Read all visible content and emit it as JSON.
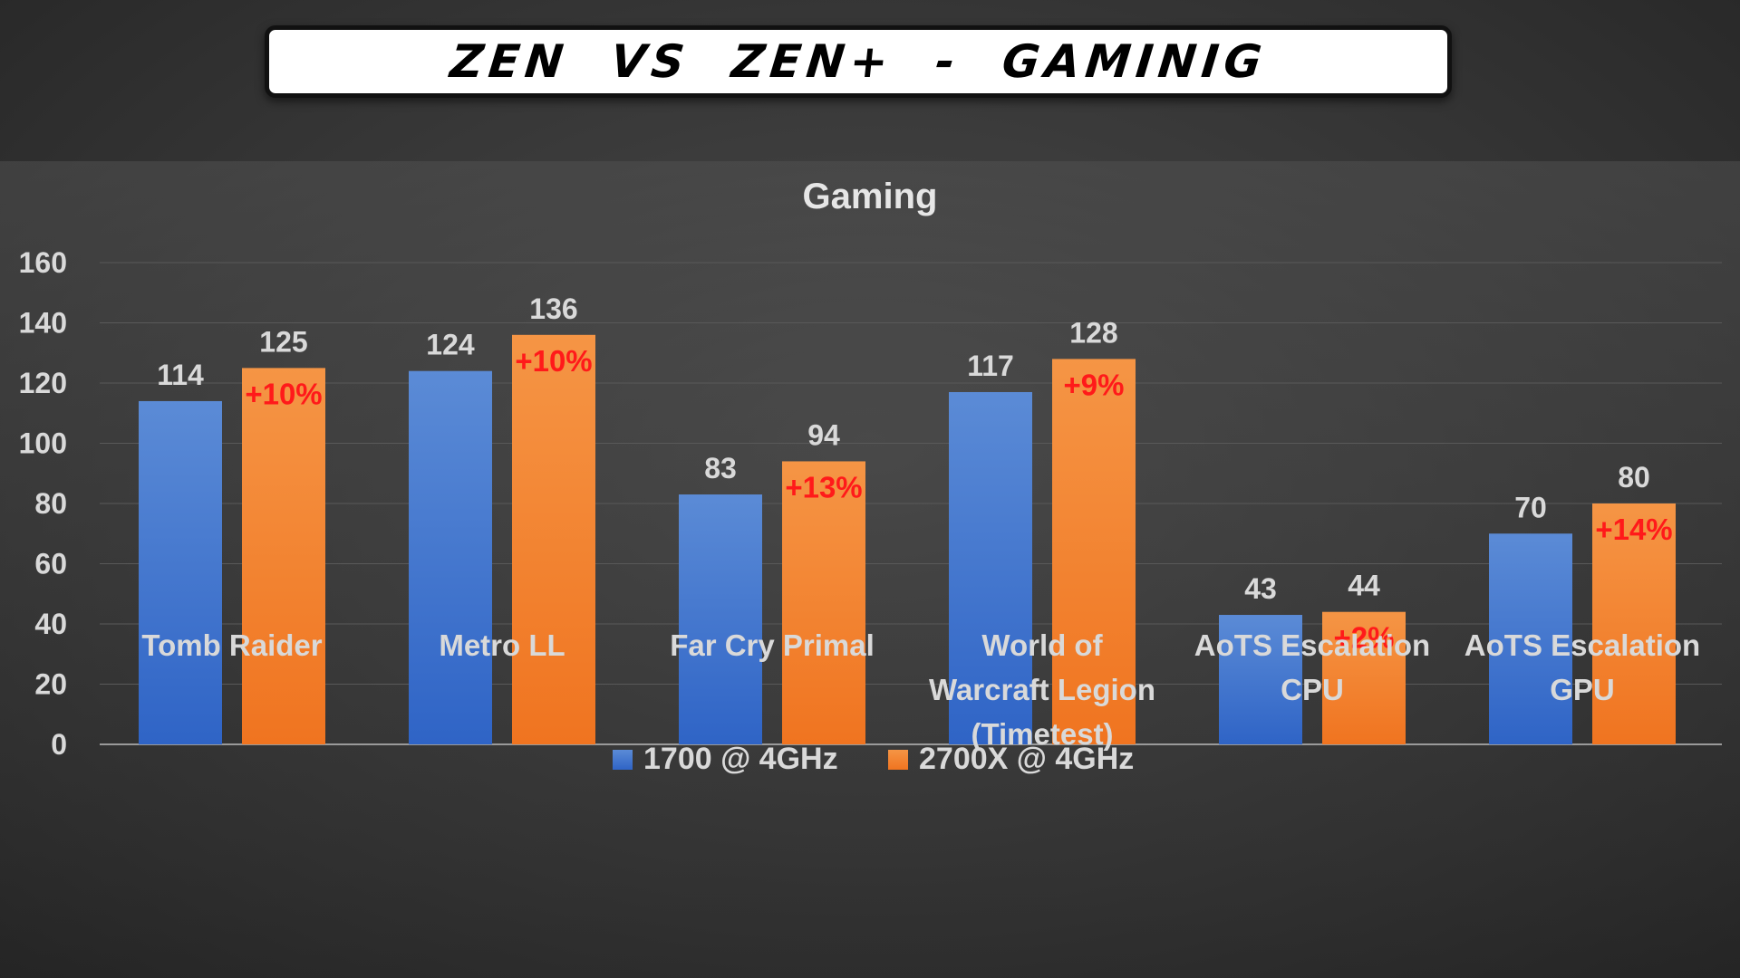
{
  "banner": {
    "title": "ZEN  VS  ZEN+  -  GAMINIG"
  },
  "colors": {
    "series_1700": "#4472c4",
    "series_2700x": "#ed7d31",
    "percent_label": "#ff1a1a",
    "gridline": "#595959",
    "text": "#d9d9d9"
  },
  "chart_data": {
    "type": "bar",
    "title": "Gaming",
    "xlabel": "",
    "ylabel": "",
    "ylim": [
      0,
      160
    ],
    "yticks": [
      0,
      20,
      40,
      60,
      80,
      100,
      120,
      140,
      160
    ],
    "grid": true,
    "legend_position": "bottom",
    "categories": [
      [
        "Tomb Raider"
      ],
      [
        "Metro LL"
      ],
      [
        "Far Cry Primal"
      ],
      [
        "World of",
        "Warcraft Legion",
        "(Timetest)"
      ],
      [
        "AoTS Escalation",
        "CPU"
      ],
      [
        "AoTS Escalation",
        "GPU"
      ]
    ],
    "series": [
      {
        "name": "1700 @ 4GHz",
        "values": [
          114,
          124,
          83,
          117,
          43,
          70
        ]
      },
      {
        "name": "2700X @ 4GHz",
        "values": [
          125,
          136,
          94,
          128,
          44,
          80
        ],
        "annotations": [
          "+10%",
          "+10%",
          "+13%",
          "+9%",
          "+2%",
          "+14%"
        ]
      }
    ]
  }
}
